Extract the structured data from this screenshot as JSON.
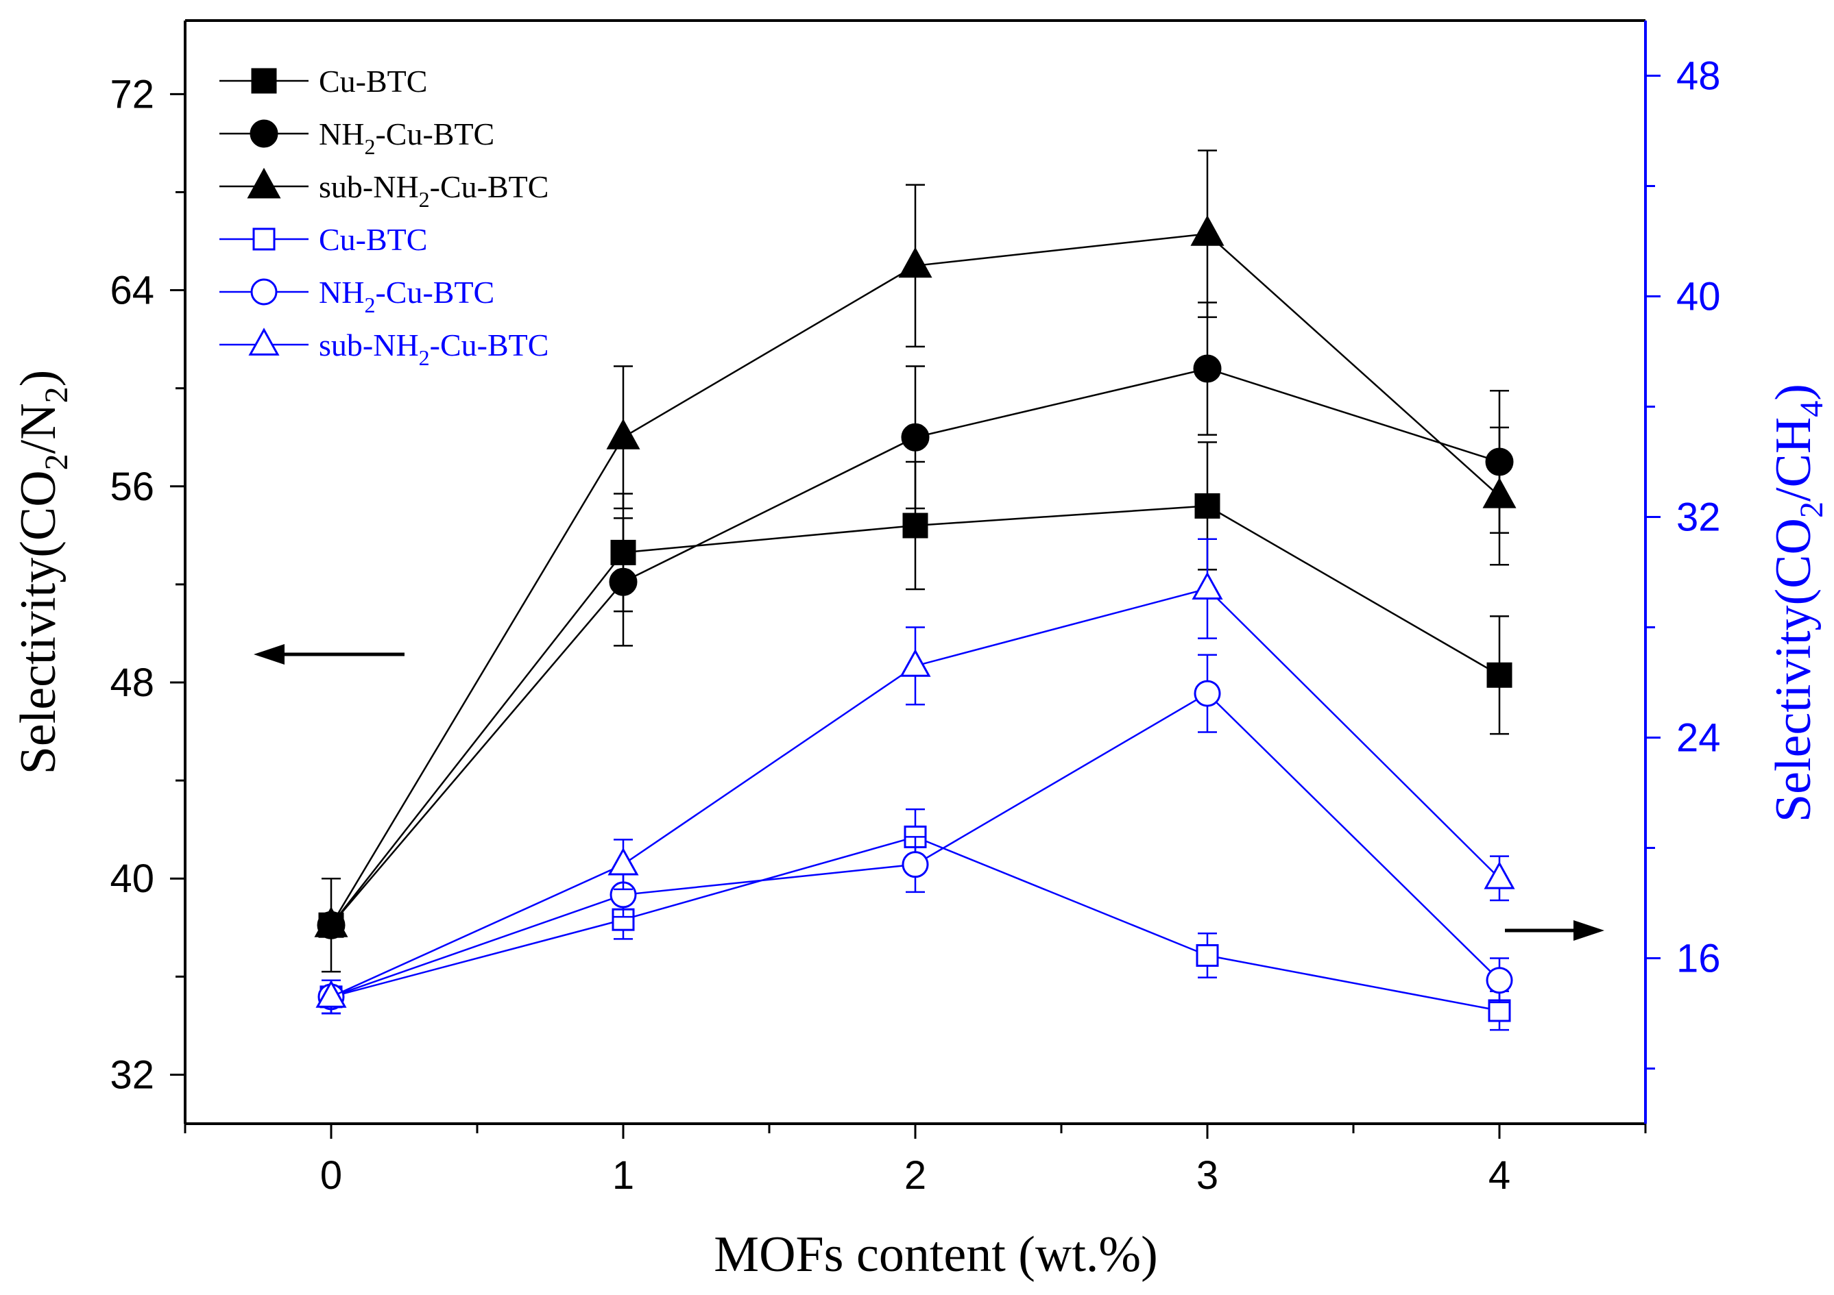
{
  "chart_data": {
    "type": "line",
    "title": "",
    "xlabel": "MOFs content (wt.%)",
    "ylabel_left": "Selectivity(CO2/N2)",
    "ylabel_right": "Selectivity(CO2/CH4)",
    "ylabel_left_parts": {
      "pre": "Selectivity(CO",
      "sub1": "2",
      "mid": "/N",
      "sub2": "2",
      "post": ")"
    },
    "ylabel_right_parts": {
      "pre": "Selectivity(CO",
      "sub1": "2",
      "mid": "/CH",
      "sub2": "4",
      "post": ")"
    },
    "x": [
      0,
      1,
      2,
      3,
      4
    ],
    "xlim": [
      -0.5,
      4.5
    ],
    "ylim_left": [
      30,
      75
    ],
    "ylim_right": [
      10,
      50
    ],
    "xticks": [
      "0",
      "1",
      "2",
      "3",
      "4"
    ],
    "yticks_left": [
      "32",
      "40",
      "48",
      "56",
      "64",
      "72"
    ],
    "yticks_right": [
      "16",
      "24",
      "32",
      "40",
      "48"
    ],
    "grid": false,
    "legend_position": "top-left",
    "colors": {
      "left": "#000000",
      "right": "#0000ff"
    },
    "series": [
      {
        "name": "Cu-BTC",
        "axis": "left",
        "marker": "square",
        "filled": true,
        "values": [
          38.1,
          53.3,
          54.4,
          55.2,
          48.3
        ],
        "errors": [
          1.9,
          2.4,
          2.6,
          2.6,
          2.4
        ],
        "legend_parts": {
          "pre": "Cu-BTC",
          "sub": "",
          "post": ""
        }
      },
      {
        "name": "NH2-Cu-BTC",
        "axis": "left",
        "marker": "circle",
        "filled": true,
        "values": [
          38.1,
          52.1,
          58.0,
          60.8,
          57.0
        ],
        "errors": [
          0,
          2.6,
          2.9,
          2.7,
          2.9
        ],
        "legend_parts": {
          "pre": "NH",
          "sub": "2",
          "post": "-Cu-BTC"
        }
      },
      {
        "name": "sub-NH2-Cu-BTC",
        "axis": "left",
        "marker": "triangle",
        "filled": true,
        "values": [
          38.1,
          58.0,
          65.0,
          66.3,
          55.6
        ],
        "errors": [
          0,
          2.9,
          3.3,
          3.4,
          2.8
        ],
        "legend_parts": {
          "pre": "sub-NH",
          "sub": "2",
          "post": "-Cu-BTC"
        }
      },
      {
        "name": "Cu-BTC",
        "axis": "right",
        "marker": "square",
        "filled": false,
        "values": [
          14.6,
          17.4,
          20.4,
          16.1,
          14.1
        ],
        "errors": [
          0.6,
          0.7,
          1.0,
          0.8,
          0.7
        ],
        "legend_parts": {
          "pre": "Cu-BTC",
          "sub": "",
          "post": ""
        }
      },
      {
        "name": "NH2-Cu-BTC",
        "axis": "right",
        "marker": "circle",
        "filled": false,
        "values": [
          14.6,
          18.3,
          19.4,
          25.6,
          15.2
        ],
        "errors": [
          0.6,
          0.8,
          1.0,
          1.4,
          0.8
        ],
        "legend_parts": {
          "pre": "NH",
          "sub": "2",
          "post": "-Cu-BTC"
        }
      },
      {
        "name": "sub-NH2-Cu-BTC",
        "axis": "right",
        "marker": "triangle",
        "filled": false,
        "values": [
          14.6,
          19.4,
          26.6,
          29.4,
          18.9
        ],
        "errors": [
          0.6,
          0.9,
          1.4,
          1.8,
          0.8
        ],
        "legend_parts": {
          "pre": "sub-NH",
          "sub": "2",
          "post": "-Cu-BTC"
        }
      }
    ]
  }
}
